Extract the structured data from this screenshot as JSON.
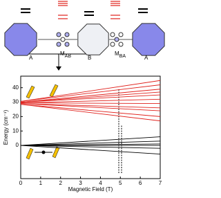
{
  "diagram": {
    "labels": [
      {
        "main": "A"
      },
      {
        "main": "M",
        "sub": "AB"
      },
      {
        "main": "B"
      },
      {
        "main": "M",
        "sub": "BA"
      },
      {
        "main": "A"
      }
    ]
  },
  "chart_data": {
    "type": "line",
    "ylabel": "Energy (cm⁻¹)",
    "xlabel": "Magnetic Field (T)",
    "x": [
      0,
      7
    ],
    "xlim": [
      0,
      7
    ],
    "xticks": [
      0,
      1,
      2,
      3,
      4,
      5,
      6,
      7
    ],
    "ylim": [
      -23,
      48
    ],
    "yticks": [
      0,
      10,
      20,
      30,
      40
    ],
    "series": [
      {
        "color": "#e0201b",
        "values": [
          30.5,
          45
        ]
      },
      {
        "color": "#e0201b",
        "values": [
          30.5,
          42
        ]
      },
      {
        "color": "#e0201b",
        "values": [
          30,
          39
        ]
      },
      {
        "color": "#e0201b",
        "values": [
          30,
          37
        ]
      },
      {
        "color": "#e0201b",
        "values": [
          30,
          35
        ]
      },
      {
        "color": "#e0201b",
        "values": [
          29.5,
          32
        ]
      },
      {
        "color": "#e0201b",
        "values": [
          29.5,
          29
        ]
      },
      {
        "color": "#e0201b",
        "values": [
          29,
          26
        ]
      },
      {
        "color": "#e0201b",
        "values": [
          29,
          24
        ]
      },
      {
        "color": "#e0201b",
        "values": [
          28.5,
          20
        ]
      },
      {
        "color": "#e0201b",
        "values": [
          28.5,
          17
        ]
      },
      {
        "color": "#000000",
        "values": [
          0,
          6
        ]
      },
      {
        "color": "#000000",
        "values": [
          0,
          3
        ]
      },
      {
        "color": "#000000",
        "values": [
          0,
          1
        ]
      },
      {
        "color": "#000000",
        "values": [
          0,
          0
        ]
      },
      {
        "color": "#000000",
        "values": [
          0,
          -2
        ]
      },
      {
        "color": "#000000",
        "values": [
          0,
          -6
        ]
      }
    ]
  }
}
